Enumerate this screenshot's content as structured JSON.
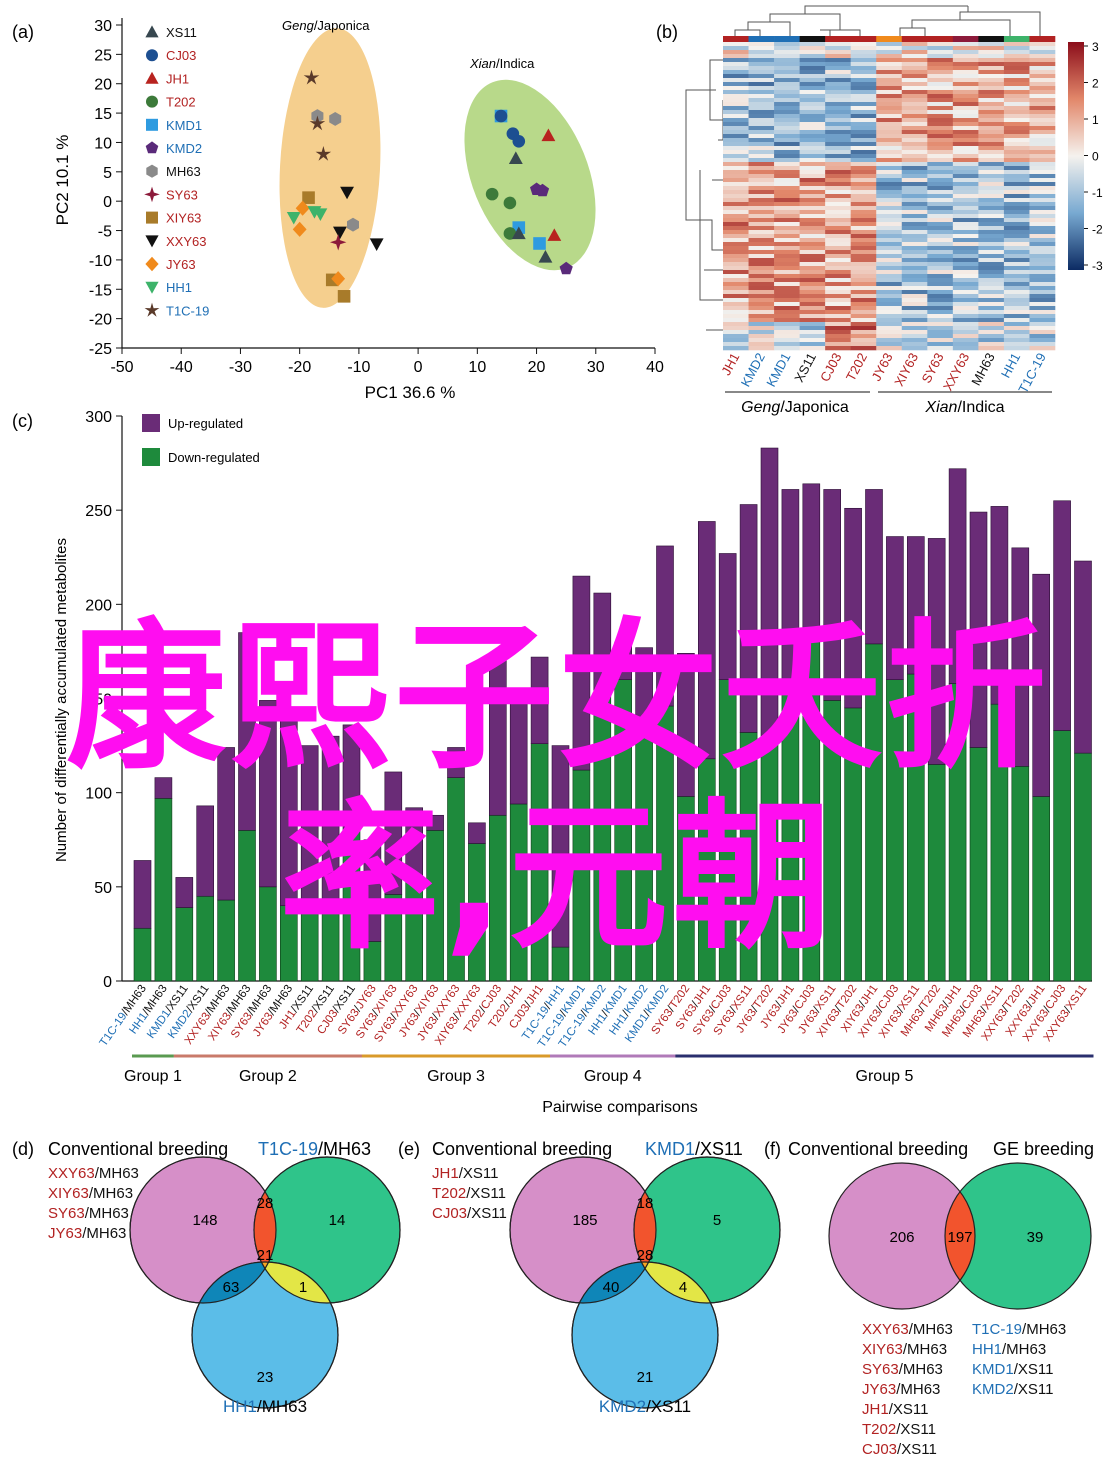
{
  "colors": {
    "japonica": "#b22222",
    "indica": "#1f6fb5",
    "black": "#111111",
    "purple": "#6a2c77",
    "green": "#1e8a3c",
    "ellipse_japonica": "#f5cf8e",
    "ellipse_indica": "#b8d98a"
  },
  "panel_labels": {
    "a": "(a)",
    "b": "(b)",
    "c": "(c)",
    "d": "(d)",
    "e": "(e)",
    "f": "(f)"
  },
  "pca": {
    "xlabel": "PC1 36.6 %",
    "ylabel": "PC2 10.1 %",
    "xticks": [
      "-50",
      "-40",
      "-30",
      "-20",
      "-10",
      "0",
      "10",
      "20",
      "30",
      "40"
    ],
    "yticks": [
      "30",
      "25",
      "20",
      "15",
      "10",
      "5",
      "0",
      "-5",
      "-10",
      "-15",
      "-20",
      "-25"
    ],
    "group_japonica": {
      "italic": "Geng",
      "rest": "/Japonica"
    },
    "group_indica": {
      "italic": "Xian",
      "rest": "/Indica"
    },
    "legend": [
      {
        "label": "XS11",
        "color": "#111111",
        "marker": "triangle-up",
        "fill": "#37474f"
      },
      {
        "label": "CJ03",
        "color": "#b22222",
        "marker": "circle",
        "fill": "#1d4f91"
      },
      {
        "label": "JH1",
        "color": "#b22222",
        "marker": "triangle-up",
        "fill": "#b8231f"
      },
      {
        "label": "T202",
        "color": "#b22222",
        "marker": "circle",
        "fill": "#3c7a3a"
      },
      {
        "label": "KMD1",
        "color": "#1f6fb5",
        "marker": "square",
        "fill": "#2e9be0"
      },
      {
        "label": "KMD2",
        "color": "#1f6fb5",
        "marker": "pentagon",
        "fill": "#5a2a7a"
      },
      {
        "label": "MH63",
        "color": "#111111",
        "marker": "hexagon",
        "fill": "#8a8a8a"
      },
      {
        "label": "SY63",
        "color": "#b22222",
        "marker": "star4",
        "fill": "#8c1a3a"
      },
      {
        "label": "XIY63",
        "color": "#b22222",
        "marker": "square",
        "fill": "#a87b2a"
      },
      {
        "label": "XXY63",
        "color": "#b22222",
        "marker": "triangle-down",
        "fill": "#111111"
      },
      {
        "label": "JY63",
        "color": "#b22222",
        "marker": "diamond",
        "fill": "#f08a1c"
      },
      {
        "label": "HH1",
        "color": "#1f6fb5",
        "marker": "triangle-down",
        "fill": "#3db36a"
      },
      {
        "label": "T1C-19",
        "color": "#1f6fb5",
        "marker": "star",
        "fill": "#5a3a2a"
      }
    ]
  },
  "heatmap": {
    "columns": [
      {
        "label": "JH1",
        "color": "#b22222"
      },
      {
        "label": "KMD2",
        "color": "#1f6fb5"
      },
      {
        "label": "KMD1",
        "color": "#1f6fb5"
      },
      {
        "label": "XS11",
        "color": "#111111"
      },
      {
        "label": "CJ03",
        "color": "#b22222"
      },
      {
        "label": "T202",
        "color": "#b22222"
      },
      {
        "label": "JY63",
        "color": "#b22222"
      },
      {
        "label": "XIY63",
        "color": "#b22222"
      },
      {
        "label": "SY63",
        "color": "#b22222"
      },
      {
        "label": "XXY63",
        "color": "#b22222"
      },
      {
        "label": "MH63",
        "color": "#111111"
      },
      {
        "label": "HH1",
        "color": "#1f6fb5"
      },
      {
        "label": "T1C-19",
        "color": "#1f6fb5"
      }
    ],
    "top_bar_colors": [
      "#b22222",
      "#1f6fb5",
      "#1f6fb5",
      "#111111",
      "#b22222",
      "#b22222",
      "#f08a1c",
      "#b22222",
      "#b22222",
      "#8c1a3a",
      "#111111",
      "#3db36a",
      "#b22222"
    ],
    "group_japonica": {
      "italic": "Geng",
      "rest": "/Japonica"
    },
    "group_indica": {
      "italic": "Xian",
      "rest": "/Indica"
    },
    "colorbar_ticks": [
      "3",
      "2",
      "1",
      "0",
      "-1",
      "-2",
      "-3"
    ],
    "range": [
      -3,
      3
    ]
  },
  "chart_data": {
    "type": "bar",
    "ylabel": "Number of differentially accumulated metabolites",
    "xlabel": "Pairwise comparisons",
    "ylim": [
      0,
      300
    ],
    "yticks": [
      "0",
      "50",
      "100",
      "150",
      "200",
      "250",
      "300"
    ],
    "legend": [
      {
        "label": "Up-regulated",
        "color": "#6a2c77"
      },
      {
        "label": "Down-regulated",
        "color": "#1e8a3c"
      }
    ],
    "categories": [
      {
        "a": "T1C-19",
        "ac": "#1f6fb5",
        "b": "MH63",
        "bc": "#111111"
      },
      {
        "a": "HH1",
        "ac": "#1f6fb5",
        "b": "MH63",
        "bc": "#111111"
      },
      {
        "a": "KMD1",
        "ac": "#1f6fb5",
        "b": "XS11",
        "bc": "#111111"
      },
      {
        "a": "KMD2",
        "ac": "#1f6fb5",
        "b": "XS11",
        "bc": "#111111"
      },
      {
        "a": "XXY63",
        "ac": "#b22222",
        "b": "MH63",
        "bc": "#111111"
      },
      {
        "a": "XIY63",
        "ac": "#b22222",
        "b": "MH63",
        "bc": "#111111"
      },
      {
        "a": "SY63",
        "ac": "#b22222",
        "b": "MH63",
        "bc": "#111111"
      },
      {
        "a": "JY63",
        "ac": "#b22222",
        "b": "MH63",
        "bc": "#111111"
      },
      {
        "a": "JH1",
        "ac": "#b22222",
        "b": "XS11",
        "bc": "#111111"
      },
      {
        "a": "T202",
        "ac": "#b22222",
        "b": "XS11",
        "bc": "#111111"
      },
      {
        "a": "CJ03",
        "ac": "#b22222",
        "b": "XS11",
        "bc": "#111111"
      },
      {
        "a": "SY63",
        "ac": "#b22222",
        "b": "JY63",
        "bc": "#b22222"
      },
      {
        "a": "SY63",
        "ac": "#b22222",
        "b": "XIY63",
        "bc": "#b22222"
      },
      {
        "a": "SY63",
        "ac": "#b22222",
        "b": "XXY63",
        "bc": "#b22222"
      },
      {
        "a": "JY63",
        "ac": "#b22222",
        "b": "XIY63",
        "bc": "#b22222"
      },
      {
        "a": "JY63",
        "ac": "#b22222",
        "b": "XXY63",
        "bc": "#b22222"
      },
      {
        "a": "XIY63",
        "ac": "#b22222",
        "b": "XXY63",
        "bc": "#b22222"
      },
      {
        "a": "T202",
        "ac": "#b22222",
        "b": "CJ03",
        "bc": "#b22222"
      },
      {
        "a": "T202",
        "ac": "#b22222",
        "b": "JH1",
        "bc": "#b22222"
      },
      {
        "a": "CJ03",
        "ac": "#b22222",
        "b": "JH1",
        "bc": "#b22222"
      },
      {
        "a": "T1C-19",
        "ac": "#1f6fb5",
        "b": "HH1",
        "bc": "#1f6fb5"
      },
      {
        "a": "T1C-19",
        "ac": "#1f6fb5",
        "b": "KMD1",
        "bc": "#1f6fb5"
      },
      {
        "a": "T1C-19",
        "ac": "#1f6fb5",
        "b": "KMD2",
        "bc": "#1f6fb5"
      },
      {
        "a": "HH1",
        "ac": "#1f6fb5",
        "b": "KMD1",
        "bc": "#1f6fb5"
      },
      {
        "a": "HH1",
        "ac": "#1f6fb5",
        "b": "KMD2",
        "bc": "#1f6fb5"
      },
      {
        "a": "KMD1",
        "ac": "#1f6fb5",
        "b": "KMD2",
        "bc": "#1f6fb5"
      },
      {
        "a": "SY63",
        "ac": "#b22222",
        "b": "T202",
        "bc": "#b22222"
      },
      {
        "a": "SY63",
        "ac": "#b22222",
        "b": "JH1",
        "bc": "#b22222"
      },
      {
        "a": "SY63",
        "ac": "#b22222",
        "b": "CJ03",
        "bc": "#b22222"
      },
      {
        "a": "SY63",
        "ac": "#b22222",
        "b": "XS11",
        "bc": "#b22222"
      },
      {
        "a": "JY63",
        "ac": "#b22222",
        "b": "T202",
        "bc": "#b22222"
      },
      {
        "a": "JY63",
        "ac": "#b22222",
        "b": "JH1",
        "bc": "#b22222"
      },
      {
        "a": "JY63",
        "ac": "#b22222",
        "b": "CJ03",
        "bc": "#b22222"
      },
      {
        "a": "JY63",
        "ac": "#b22222",
        "b": "XS11",
        "bc": "#b22222"
      },
      {
        "a": "XIY63",
        "ac": "#b22222",
        "b": "T202",
        "bc": "#b22222"
      },
      {
        "a": "XIY63",
        "ac": "#b22222",
        "b": "JH1",
        "bc": "#b22222"
      },
      {
        "a": "XIY63",
        "ac": "#b22222",
        "b": "CJ03",
        "bc": "#b22222"
      },
      {
        "a": "XIY63",
        "ac": "#b22222",
        "b": "XS11",
        "bc": "#b22222"
      },
      {
        "a": "MH63",
        "ac": "#b22222",
        "b": "T202",
        "bc": "#b22222"
      },
      {
        "a": "MH63",
        "ac": "#b22222",
        "b": "JH1",
        "bc": "#b22222"
      },
      {
        "a": "MH63",
        "ac": "#b22222",
        "b": "CJ03",
        "bc": "#b22222"
      },
      {
        "a": "MH63",
        "ac": "#b22222",
        "b": "XS11",
        "bc": "#b22222"
      },
      {
        "a": "XXY63",
        "ac": "#b22222",
        "b": "T202",
        "bc": "#b22222"
      },
      {
        "a": "XXY63",
        "ac": "#b22222",
        "b": "JH1",
        "bc": "#b22222"
      },
      {
        "a": "XXY63",
        "ac": "#b22222",
        "b": "CJ03",
        "bc": "#b22222"
      },
      {
        "a": "XXY63",
        "ac": "#b22222",
        "b": "XS11",
        "bc": "#b22222"
      }
    ],
    "series": [
      {
        "name": "Down-regulated",
        "color": "#1e8a3c",
        "values": [
          28,
          97,
          39,
          45,
          43,
          80,
          50,
          40,
          42,
          42,
          80,
          21,
          46,
          56,
          80,
          108,
          73,
          88,
          94,
          126,
          18,
          112,
          155,
          160,
          137,
          146,
          98,
          118,
          160,
          132,
          126,
          153,
          180,
          149,
          145,
          179,
          160,
          163,
          115,
          158,
          124,
          147,
          114,
          98,
          133,
          121
        ]
      },
      {
        "name": "Up-regulated",
        "color": "#6a2c77",
        "values": [
          36,
          11,
          16,
          48,
          81,
          105,
          99,
          103,
          83,
          88,
          56,
          54,
          65,
          36,
          8,
          16,
          11,
          86,
          57,
          46,
          107,
          103,
          51,
          20,
          40,
          85,
          76,
          126,
          67,
          121,
          157,
          108,
          84,
          112,
          106,
          82,
          76,
          73,
          120,
          114,
          125,
          105,
          116,
          118,
          122,
          102
        ]
      }
    ],
    "groups": [
      {
        "label": "Group 1",
        "color": "#5a9a50",
        "start": 0,
        "end": 1
      },
      {
        "label": "Group 2",
        "color": "#c97a6a",
        "start": 2,
        "end": 10
      },
      {
        "label": "Group 3",
        "color": "#d99a2a",
        "start": 11,
        "end": 19
      },
      {
        "label": "Group 4",
        "color": "#b07ab8",
        "start": 20,
        "end": 25
      },
      {
        "label": "Group 5",
        "color": "#2a2f6e",
        "start": 26,
        "end": 45
      }
    ]
  },
  "venn_d": {
    "label": "(d)",
    "left_title": "Conventional breeding",
    "right_title_a": "T1C-19",
    "right_title_b": "/MH63",
    "left_list": [
      {
        "a": "XXY63",
        "b": "/MH63"
      },
      {
        "a": "XIY63",
        "b": "/MH63"
      },
      {
        "a": "SY63",
        "b": "/MH63"
      },
      {
        "a": "JY63",
        "b": "/MH63"
      }
    ],
    "bottom_title_a": "HH1",
    "bottom_title_b": "/MH63",
    "values": {
      "a": "148",
      "ab": "28",
      "b": "14",
      "abc": "21",
      "ac": "63",
      "bc": "1",
      "c": "23"
    }
  },
  "venn_e": {
    "label": "(e)",
    "left_title": "Conventional breeding",
    "right_title_a": "KMD1",
    "right_title_b": "/XS11",
    "left_list": [
      {
        "a": "JH1",
        "b": "/XS11"
      },
      {
        "a": "T202",
        "b": "/XS11"
      },
      {
        "a": "CJ03",
        "b": "/XS11"
      }
    ],
    "bottom_title_a": "KMD2",
    "bottom_title_b": "/XS11",
    "values": {
      "a": "185",
      "ab": "18",
      "b": "5",
      "abc": "28",
      "ac": "40",
      "bc": "4",
      "c": "21"
    }
  },
  "venn_f": {
    "label": "(f)",
    "left_title": "Conventional breeding",
    "right_title": "GE breeding",
    "values": {
      "a": "206",
      "ab": "197",
      "b": "39"
    },
    "left_list": [
      {
        "a": "XXY63",
        "b": "/MH63"
      },
      {
        "a": "XIY63",
        "b": "/MH63"
      },
      {
        "a": "SY63",
        "b": "/MH63"
      },
      {
        "a": "JY63",
        "b": "/MH63"
      },
      {
        "a": "JH1",
        "b": "/XS11"
      },
      {
        "a": "T202",
        "b": "/XS11"
      },
      {
        "a": "CJ03",
        "b": "/XS11"
      }
    ],
    "right_list": [
      {
        "a": "T1C-19",
        "b": "/MH63"
      },
      {
        "a": "HH1",
        "b": "/MH63"
      },
      {
        "a": "KMD1",
        "b": "/XS11"
      },
      {
        "a": "KMD2",
        "b": "/XS11"
      }
    ]
  },
  "overlay": {
    "line1": "康熙子女夭折",
    "line2": "率,元朝"
  }
}
